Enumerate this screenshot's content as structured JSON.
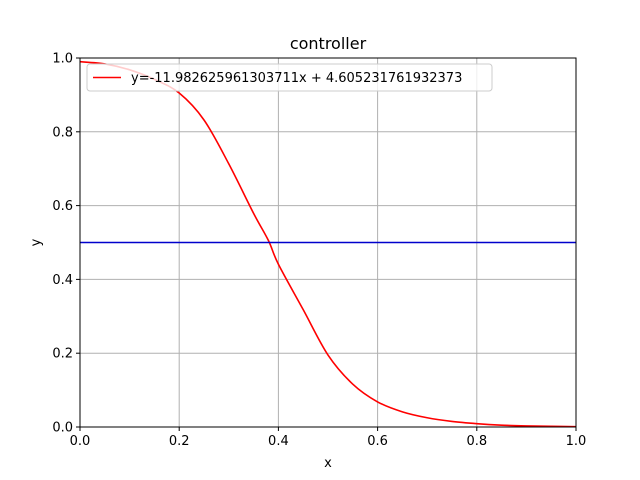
{
  "chart_data": {
    "type": "line",
    "title": "controller",
    "xlabel": "x",
    "ylabel": "y",
    "xlim": [
      0.0,
      1.0
    ],
    "ylim": [
      0.0,
      1.0
    ],
    "xticks": [
      "0.0",
      "0.2",
      "0.4",
      "0.6",
      "0.8",
      "1.0"
    ],
    "yticks": [
      "0.0",
      "0.2",
      "0.4",
      "0.6",
      "0.8",
      "1.0"
    ],
    "grid": true,
    "legend": {
      "placement": "top-left",
      "entries": [
        "y=-11.982625961303711x + 4.605231761932373"
      ]
    },
    "series": [
      {
        "name": "y=-11.982625961303711x + 4.605231761932373",
        "color": "#ff0000",
        "x": [
          0.0,
          0.05,
          0.1,
          0.15,
          0.2,
          0.25,
          0.3,
          0.35,
          0.38,
          0.4,
          0.45,
          0.5,
          0.55,
          0.6,
          0.65,
          0.7,
          0.75,
          0.8,
          0.85,
          0.9,
          0.95,
          1.0
        ],
        "y": [
          0.99,
          0.984,
          0.968,
          0.942,
          0.905,
          0.832,
          0.713,
          0.579,
          0.505,
          0.441,
          0.318,
          0.195,
          0.116,
          0.068,
          0.041,
          0.025,
          0.015,
          0.009,
          0.005,
          0.003,
          0.002,
          0.001
        ]
      },
      {
        "name": "",
        "color": "#0000cc",
        "x": [
          0.0,
          1.0
        ],
        "y": [
          0.5,
          0.5
        ]
      }
    ]
  }
}
